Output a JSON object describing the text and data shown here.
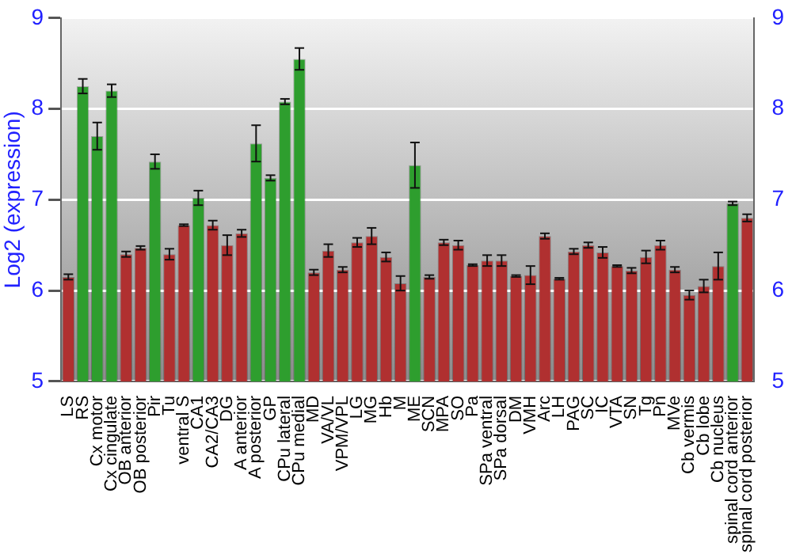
{
  "chart_data": {
    "type": "bar",
    "ylabel": "Log2 (expression)",
    "categories": [
      "LS",
      "RS",
      "Cx motor",
      "Cx cingulate",
      "OB anterior",
      "OB posterior",
      "Pir",
      "Tu",
      "ventral S",
      "CA1",
      "CA2/CA3",
      "DG",
      "A anterior",
      "A posterior",
      "GP",
      "CPu lateral",
      "CPu medial",
      "MD",
      "VA/VL",
      "VPM/VPL",
      "LG",
      "MG",
      "Hb",
      "M",
      "ME",
      "SCN",
      "MPA",
      "SO",
      "Pa",
      "SPa ventral",
      "SPa dorsal",
      "DM",
      "VMH",
      "Arc",
      "LH",
      "PAG",
      "SC",
      "IC",
      "VTA",
      "SN",
      "Tg",
      "Pn",
      "MVe",
      "Cb vermis",
      "Cb lobe",
      "Cb nucleus",
      "spinal cord anterior",
      "spinal cord posterior"
    ],
    "values": [
      6.15,
      8.25,
      7.7,
      8.2,
      6.4,
      6.47,
      7.42,
      6.4,
      6.72,
      7.02,
      6.72,
      6.5,
      6.63,
      7.62,
      7.24,
      8.08,
      8.55,
      6.2,
      6.44,
      6.23,
      6.53,
      6.6,
      6.37,
      6.08,
      7.38,
      6.15,
      6.53,
      6.5,
      6.28,
      6.33,
      6.33,
      6.16,
      6.17,
      6.6,
      6.13,
      6.43,
      6.5,
      6.42,
      6.27,
      6.22,
      6.37,
      6.5,
      6.23,
      5.95,
      6.05,
      6.27,
      6.96,
      6.8
    ],
    "errors": [
      0.03,
      0.08,
      0.15,
      0.07,
      0.03,
      0.02,
      0.08,
      0.06,
      0.01,
      0.08,
      0.05,
      0.11,
      0.04,
      0.2,
      0.03,
      0.03,
      0.12,
      0.03,
      0.07,
      0.03,
      0.05,
      0.09,
      0.05,
      0.08,
      0.25,
      0.02,
      0.03,
      0.05,
      0.01,
      0.06,
      0.06,
      0.01,
      0.1,
      0.03,
      0.01,
      0.03,
      0.03,
      0.06,
      0.01,
      0.03,
      0.07,
      0.05,
      0.03,
      0.05,
      0.07,
      0.15,
      0.02,
      0.04
    ],
    "colors": [
      "#b03030",
      "#2e9e2e",
      "#2e9e2e",
      "#2e9e2e",
      "#b03030",
      "#b03030",
      "#2e9e2e",
      "#b03030",
      "#b03030",
      "#2e9e2e",
      "#b03030",
      "#b03030",
      "#b03030",
      "#2e9e2e",
      "#2e9e2e",
      "#2e9e2e",
      "#2e9e2e",
      "#b03030",
      "#b03030",
      "#b03030",
      "#b03030",
      "#b03030",
      "#b03030",
      "#b03030",
      "#2e9e2e",
      "#b03030",
      "#b03030",
      "#b03030",
      "#b03030",
      "#b03030",
      "#b03030",
      "#b03030",
      "#b03030",
      "#b03030",
      "#b03030",
      "#b03030",
      "#b03030",
      "#b03030",
      "#b03030",
      "#b03030",
      "#b03030",
      "#b03030",
      "#b03030",
      "#b03030",
      "#b03030",
      "#b03030",
      "#2e9e2e",
      "#b03030"
    ],
    "ylim": [
      5,
      9
    ],
    "yticks": [
      5,
      6,
      7,
      8,
      9
    ],
    "y2lim": [
      5,
      9
    ],
    "y2ticks": [
      5,
      6,
      7,
      8,
      9
    ],
    "grid": "y"
  }
}
